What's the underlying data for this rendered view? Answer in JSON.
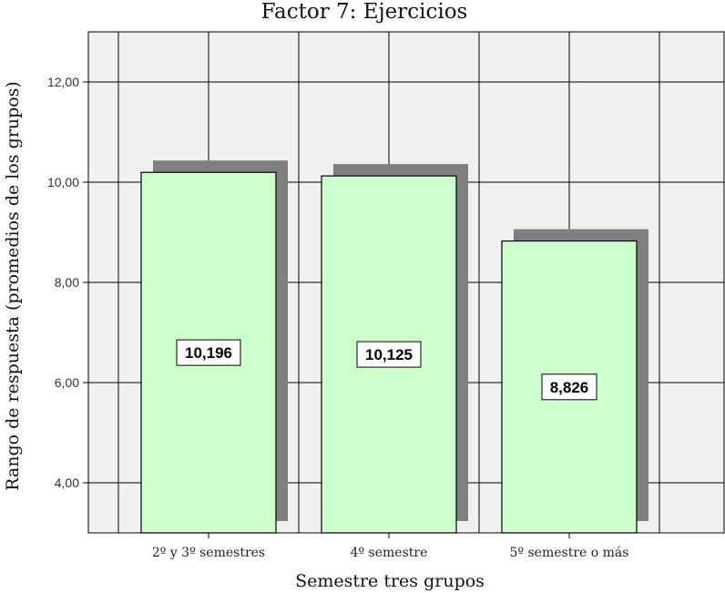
{
  "chart_data": {
    "type": "bar",
    "title": "Factor 7: Ejercicios",
    "xlabel": "Semestre tres grupos",
    "ylabel": "Rango de respuesta (promedios de los grupos)",
    "categories": [
      "2º y 3º semestres",
      "4º semestre",
      "5º semestre o más"
    ],
    "values": [
      10.196,
      10.125,
      8.826
    ],
    "data_labels": [
      "10,196",
      "10,125",
      "8,826"
    ],
    "ylim": [
      3.0,
      13.0
    ],
    "yticks": [
      4,
      6,
      8,
      10,
      12
    ],
    "ytick_labels": [
      "4,00",
      "6,00",
      "8,00",
      "10,00",
      "12,00"
    ],
    "grid": true,
    "bar_color": "#ccffcc",
    "shadow_color": "#7f7f7f",
    "plot_background": "#f0f0f0"
  }
}
